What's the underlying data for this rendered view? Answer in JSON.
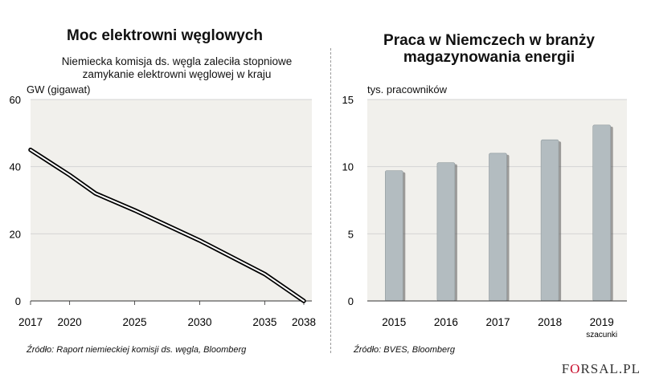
{
  "left": {
    "title": "Moc elektrowni węglowych",
    "subtitle_line1": "Niemiecka komisja ds. węgla zaleciła stopniowe",
    "subtitle_line2": "zamykanie elektrowni węglowej w kraju",
    "unit": "GW (gigawat)",
    "source": "Źródło: Raport niemieckiej komisji ds. węgla, Bloomberg"
  },
  "right": {
    "title_line1": "Praca w Niemczech w branży",
    "title_line2": "magazynowania energii",
    "unit": "tys. pracowników",
    "source": "Źródło: BVES, Bloomberg"
  },
  "logo": {
    "part1": "F",
    "part2": "O",
    "part3": "RSAL",
    "part4": ".PL"
  },
  "colors": {
    "bar": "#b3bcc0",
    "line": "#000000",
    "grid": "#d4d4d4"
  },
  "chart_data": [
    {
      "type": "line",
      "title": "Moc elektrowni węglowych",
      "ylabel": "GW (gigawat)",
      "xlim": [
        2017,
        2038
      ],
      "ylim": [
        0,
        60
      ],
      "x": [
        2017,
        2018,
        2019,
        2020,
        2022,
        2025,
        2030,
        2035,
        2038
      ],
      "y": [
        45,
        42.5,
        40,
        37.5,
        32,
        27,
        18,
        8,
        0
      ],
      "x_ticks": [
        2017,
        2020,
        2025,
        2030,
        2035,
        2038
      ],
      "y_ticks": [
        0,
        20,
        40,
        60
      ]
    },
    {
      "type": "bar",
      "title": "Praca w Niemczech w branży magazynowania energii",
      "ylabel": "tys. pracowników",
      "categories": [
        "2015",
        "2016",
        "2017",
        "2018",
        "2019"
      ],
      "category_notes": [
        "",
        "",
        "",
        "",
        "szacunki"
      ],
      "values": [
        9.7,
        10.3,
        11.0,
        12.0,
        13.1
      ],
      "ylim": [
        0,
        15
      ],
      "y_ticks": [
        0,
        5,
        10,
        15
      ]
    }
  ]
}
